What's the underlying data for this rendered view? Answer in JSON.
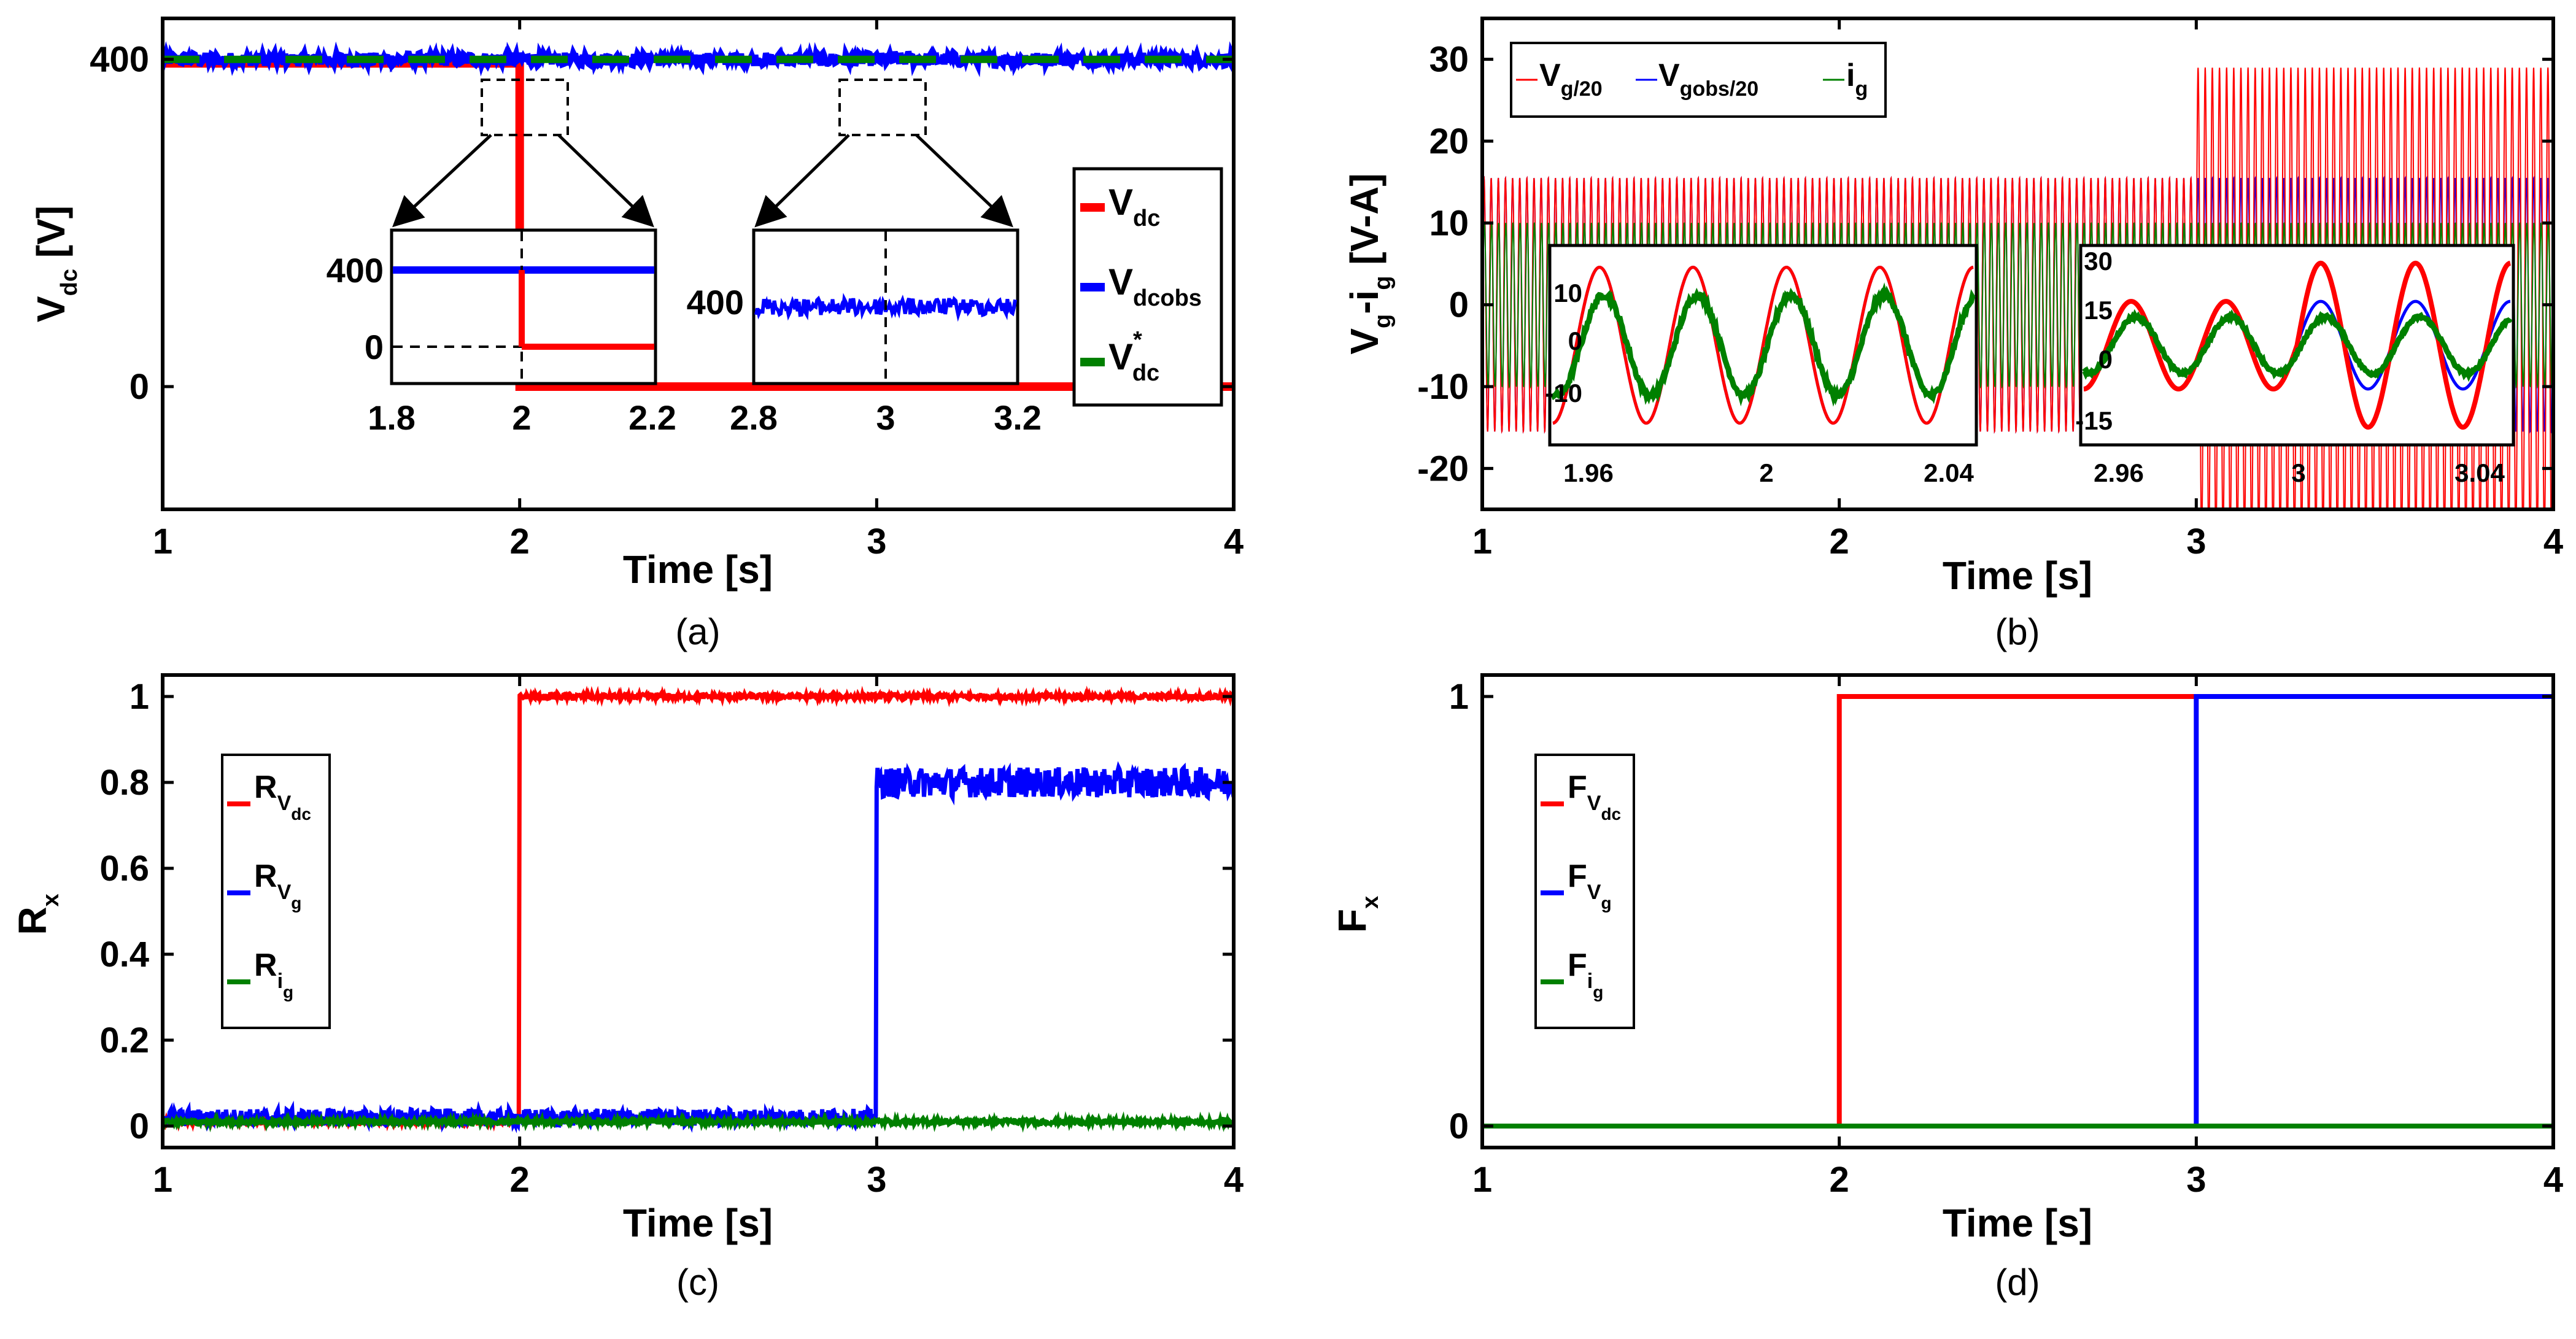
{
  "colors": {
    "red": "#ff0000",
    "blue": "#0000ff",
    "green": "#008000"
  },
  "chart_data": [
    {
      "id": "a",
      "type": "line",
      "caption": "(a)",
      "xlabel": "Time [s]",
      "ylabel": "V",
      "ylabel_sub": "dc",
      "ylabel_unit": " [V]",
      "xlim": [
        1,
        4
      ],
      "ylim": [
        -150,
        450
      ],
      "xticks": [
        1,
        2,
        3,
        4
      ],
      "yticks": [
        0,
        400
      ],
      "series": [
        {
          "name": "V",
          "sub": "dc",
          "color": "red",
          "points": [
            [
              1,
              395
            ],
            [
              2,
              395
            ],
            [
              2,
              0
            ],
            [
              4,
              0
            ]
          ]
        },
        {
          "name": "V",
          "sub": "dcobs",
          "color": "blue",
          "points": [
            [
              1,
              400
            ],
            [
              4,
              400
            ]
          ],
          "noise": 8
        },
        {
          "name": "V",
          "sub": "dc",
          "sup": "*",
          "color": "green",
          "points": [
            [
              1,
              400
            ],
            [
              4,
              400
            ]
          ],
          "dashed": true
        }
      ],
      "legend_position": "right",
      "insets": [
        {
          "xticks": [
            "1.8",
            "2",
            "2.2"
          ],
          "yticks": [
            "400",
            "0"
          ]
        },
        {
          "xticks": [
            "2.8",
            "3",
            "3.2"
          ],
          "yticks": [
            "400"
          ]
        }
      ]
    },
    {
      "id": "b",
      "type": "line",
      "caption": "(b)",
      "xlabel": "Time [s]",
      "ylabel": "V",
      "ylabel_sub": "g",
      "ylabel_mid": "-i",
      "ylabel_sub2": "g",
      "ylabel_unit": " [V-A]",
      "xlim": [
        1,
        4
      ],
      "ylim": [
        -25,
        35
      ],
      "xticks": [
        1,
        2,
        3,
        4
      ],
      "yticks": [
        -20,
        -10,
        0,
        10,
        20,
        30
      ],
      "series": [
        {
          "name": "V",
          "sub": "g/20",
          "color": "red",
          "amplitude_before": 15.5,
          "amplitude_after": 29,
          "step_time": 3
        },
        {
          "name": "V",
          "sub": "gobs/20",
          "color": "blue",
          "amplitude": 15.5
        },
        {
          "name": "i",
          "sub": "g",
          "color": "green",
          "amplitude": 10
        }
      ],
      "legend_position": "top-left",
      "insets": [
        {
          "xticks": [
            "1.96",
            "2",
            "2.04"
          ],
          "yticks": [
            "10",
            "0",
            "-10"
          ]
        },
        {
          "xticks": [
            "2.96",
            "3",
            "3.04"
          ],
          "yticks": [
            "30",
            "15",
            "0",
            "-15"
          ]
        }
      ]
    },
    {
      "id": "c",
      "type": "line",
      "caption": "(c)",
      "xlabel": "Time [s]",
      "ylabel": "R",
      "ylabel_sub": "x",
      "xlim": [
        1,
        4
      ],
      "ylim": [
        -0.05,
        1.05
      ],
      "xticks": [
        1,
        2,
        3,
        4
      ],
      "yticks": [
        "0",
        "0.2",
        "0.4",
        "0.6",
        "0.8",
        "1"
      ],
      "series": [
        {
          "name": "R",
          "sub": "V",
          "subsub": "dc",
          "color": "red",
          "before": 0.01,
          "after": 1.0,
          "step_time": 2
        },
        {
          "name": "R",
          "sub": "V",
          "subsub": "g",
          "color": "blue",
          "before": 0.02,
          "after": 0.8,
          "step_time": 3
        },
        {
          "name": "R",
          "sub": "i",
          "subsub": "g",
          "color": "green",
          "value": 0.01
        }
      ],
      "legend_position": "left"
    },
    {
      "id": "d",
      "type": "line",
      "caption": "(d)",
      "xlabel": "Time [s]",
      "ylabel": "F",
      "ylabel_sub": "x",
      "xlim": [
        1,
        4
      ],
      "ylim": [
        -0.05,
        1.05
      ],
      "xticks": [
        1,
        2,
        3,
        4
      ],
      "yticks": [
        "0",
        "1"
      ],
      "series": [
        {
          "name": "F",
          "sub": "V",
          "subsub": "dc",
          "color": "red",
          "points": [
            [
              1,
              0
            ],
            [
              2,
              0
            ],
            [
              2,
              1
            ],
            [
              3,
              1
            ]
          ]
        },
        {
          "name": "F",
          "sub": "V",
          "subsub": "g",
          "color": "blue",
          "points": [
            [
              1,
              0
            ],
            [
              3,
              0
            ],
            [
              3,
              1
            ],
            [
              4,
              1
            ]
          ]
        },
        {
          "name": "F",
          "sub": "i",
          "subsub": "g",
          "color": "green",
          "points": [
            [
              1,
              0
            ],
            [
              4,
              0
            ]
          ]
        }
      ],
      "legend_position": "left"
    }
  ]
}
